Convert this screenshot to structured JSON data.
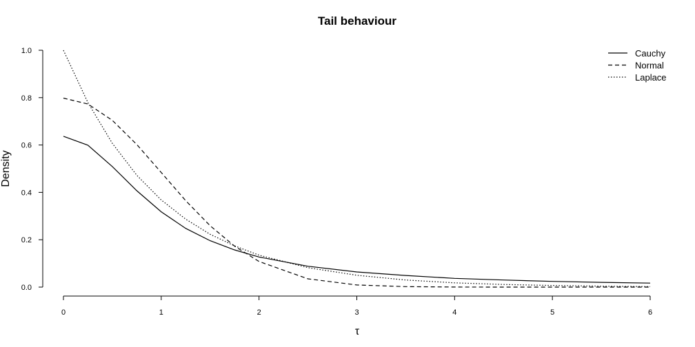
{
  "chart_data": {
    "type": "line",
    "title": "Tail behaviour",
    "xlabel": "τ",
    "ylabel": "Density",
    "xlim": [
      0,
      6
    ],
    "ylim": [
      0,
      1
    ],
    "x_ticks": [
      "0",
      "1",
      "2",
      "3",
      "4",
      "5",
      "6"
    ],
    "y_ticks": [
      "0.0",
      "0.2",
      "0.4",
      "0.6",
      "0.8",
      "1.0"
    ],
    "grid": false,
    "legend_position": "top-right",
    "x": [
      0,
      0.25,
      0.5,
      0.75,
      1,
      1.25,
      1.5,
      1.75,
      2,
      2.5,
      3,
      3.5,
      4,
      4.5,
      5,
      5.5,
      6
    ],
    "series": [
      {
        "name": "Cauchy",
        "line_style": "solid",
        "values": [
          0.637,
          0.599,
          0.509,
          0.407,
          0.318,
          0.248,
          0.196,
          0.157,
          0.127,
          0.088,
          0.064,
          0.049,
          0.037,
          0.03,
          0.024,
          0.02,
          0.017
        ]
      },
      {
        "name": "Normal",
        "line_style": "dashed",
        "values": [
          0.798,
          0.773,
          0.704,
          0.602,
          0.484,
          0.365,
          0.259,
          0.173,
          0.108,
          0.035,
          0.009,
          0.002,
          0.0003,
          0.0,
          0.0,
          0.0,
          0.0
        ]
      },
      {
        "name": "Laplace",
        "line_style": "dotted",
        "values": [
          1.0,
          0.779,
          0.607,
          0.472,
          0.368,
          0.287,
          0.223,
          0.174,
          0.135,
          0.082,
          0.05,
          0.03,
          0.018,
          0.011,
          0.007,
          0.004,
          0.002
        ]
      }
    ]
  }
}
